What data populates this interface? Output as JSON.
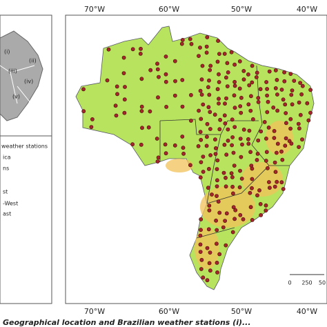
{
  "axes": {
    "top": [
      "70°W",
      "60°W",
      "50°W",
      "40°W"
    ],
    "bottom": [
      "70°W",
      "60°W",
      "50°W",
      "40°W"
    ]
  },
  "scale": [
    "0",
    "250",
    "50"
  ],
  "legend": [
    "weather stations",
    "ica",
    "ns",
    "st",
    "-West",
    "ast"
  ],
  "inset_labels": [
    "(i)",
    "(ii)",
    "(iii)",
    "(iv)",
    "(v)"
  ],
  "caption": "Geographical location and Brazilian weather stations (i)..."
}
